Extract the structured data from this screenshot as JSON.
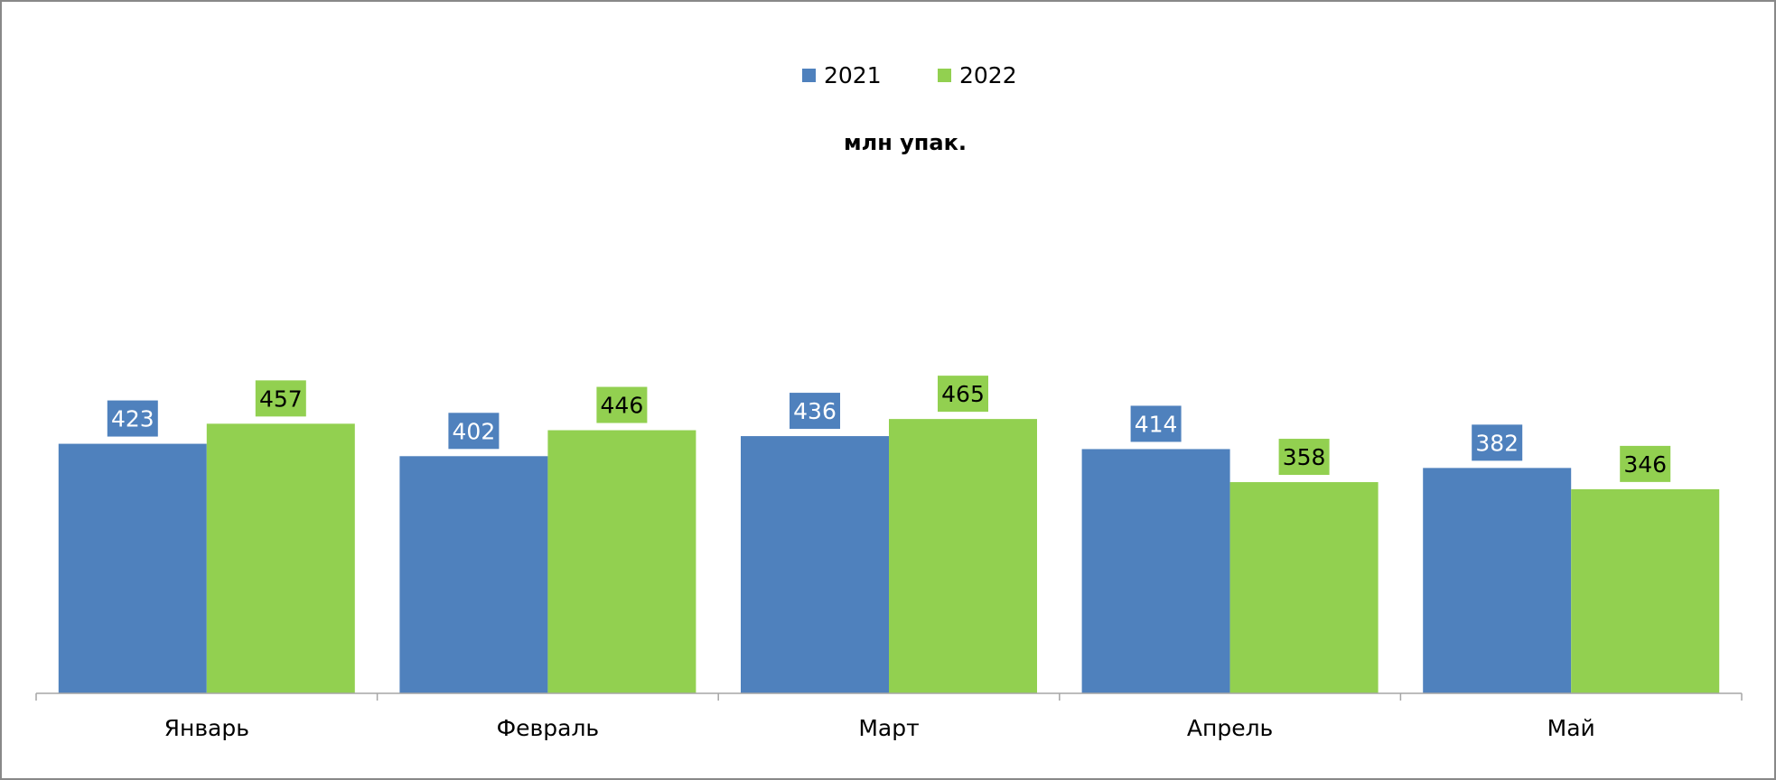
{
  "chart_data": {
    "type": "bar",
    "title": "млн упак.",
    "categories": [
      "Январь",
      "Февраль",
      "Март",
      "Апрель",
      "Май"
    ],
    "series": [
      {
        "name": "2021",
        "values": [
          423,
          402,
          436,
          414,
          382
        ],
        "color": "#4f81bd",
        "label_text_color": "#ffffff"
      },
      {
        "name": "2022",
        "values": [
          457,
          446,
          465,
          358,
          346
        ],
        "color": "#92d050",
        "label_text_color": "#000000"
      }
    ],
    "ylim": [
      0,
      920
    ],
    "grid": false,
    "legend": "top-center",
    "data_labels": true
  }
}
